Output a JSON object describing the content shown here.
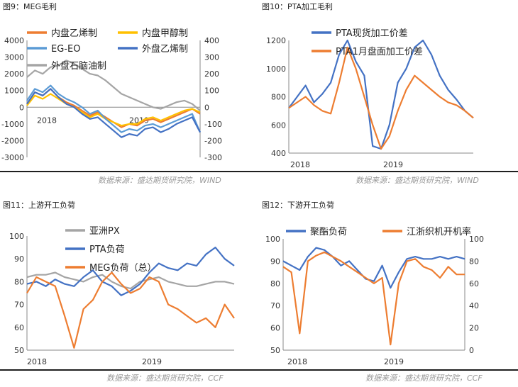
{
  "source_left": "数据来源：盛达期货研究院，WIND",
  "source_right_top": "数据来源：盛达期货研究院，WIND",
  "source_bottom": "数据来源：盛达期货研究院，CCF",
  "colors": {
    "orange": "#ED7D31",
    "yellow": "#FFC000",
    "lightblue": "#5B9BD5",
    "blue": "#4472C4",
    "gray": "#A5A5A5"
  },
  "chart_data": [
    {
      "title": "图9：MEG毛利",
      "type": "line",
      "x_ticks": [
        "2018",
        "2019"
      ],
      "y_left": {
        "ylim": [
          -3000,
          4000
        ],
        "ticks": [
          "4000",
          "3000",
          "2000",
          "1000",
          "0",
          "-1000",
          "-2000",
          "-3000"
        ]
      },
      "y_right": {
        "ylim": [
          -300,
          400
        ],
        "ticks": [
          "400",
          "300",
          "200",
          "100",
          "0",
          "-100",
          "-200",
          "-300"
        ]
      },
      "legend": "top-left",
      "series": [
        {
          "name": "内盘乙烯制",
          "color": "#ED7D31",
          "axis": "left",
          "values": [
            200,
            900,
            700,
            1100,
            600,
            300,
            100,
            -200,
            -500,
            -300,
            -600,
            -900,
            -1200,
            -1000,
            -1100,
            -800,
            -700,
            -900,
            -700,
            -500,
            -300,
            -100,
            -400
          ]
        },
        {
          "name": "内盘甲醇制",
          "color": "#FFC000",
          "axis": "left",
          "values": [
            100,
            700,
            500,
            800,
            500,
            200,
            0,
            -300,
            -600,
            -400,
            -700,
            -900,
            -1100,
            -1000,
            -1000,
            -700,
            -600,
            -800,
            -600,
            -400,
            -200,
            -100,
            -300
          ]
        },
        {
          "name": "EG-EO",
          "color": "#5B9BD5",
          "axis": "left",
          "values": [
            400,
            1100,
            900,
            1300,
            800,
            500,
            300,
            0,
            -400,
            -200,
            -700,
            -1100,
            -1500,
            -1300,
            -1400,
            -1100,
            -1000,
            -1200,
            -1000,
            -800,
            -600,
            -400,
            -1500
          ]
        },
        {
          "name": "外盘乙烯制",
          "color": "#4472C4",
          "axis": "right",
          "values": [
            20,
            90,
            70,
            110,
            60,
            20,
            0,
            -40,
            -70,
            -60,
            -100,
            -140,
            -180,
            -160,
            -170,
            -130,
            -120,
            -150,
            -130,
            -100,
            -80,
            -60,
            -150
          ]
        },
        {
          "name": "外盘石脑油制",
          "color": "#A5A5A5",
          "axis": "right",
          "values": [
            180,
            220,
            200,
            240,
            250,
            280,
            260,
            230,
            200,
            190,
            160,
            120,
            80,
            60,
            40,
            20,
            0,
            -10,
            10,
            30,
            40,
            20,
            -20
          ]
        }
      ]
    },
    {
      "title": "图10：PTA加工毛利",
      "type": "line",
      "x_ticks": [
        "2018",
        "2019"
      ],
      "y_left": {
        "ylim": [
          400,
          1200
        ],
        "ticks": [
          "1200",
          "1000",
          "800",
          "600",
          "400"
        ]
      },
      "legend": "top-left",
      "series": [
        {
          "name": "PTA现货加工价差",
          "color": "#4472C4",
          "values": [
            720,
            800,
            880,
            760,
            820,
            900,
            1100,
            1200,
            1050,
            950,
            450,
            430,
            600,
            900,
            1000,
            1150,
            1200,
            1100,
            950,
            850,
            780,
            700,
            650
          ]
        },
        {
          "name": "PTA1月盘面加工价差",
          "color": "#ED7D31",
          "values": [
            720,
            760,
            800,
            740,
            700,
            680,
            900,
            1150,
            1000,
            800,
            600,
            430,
            520,
            700,
            850,
            950,
            900,
            850,
            800,
            760,
            740,
            700,
            650
          ]
        }
      ]
    },
    {
      "title": "图11：上游开工负荷",
      "type": "line",
      "x_ticks": [
        "2018",
        "2019"
      ],
      "y_left": {
        "ylim": [
          50,
          100
        ],
        "ticks": [
          "100",
          "90",
          "80",
          "70",
          "60",
          "50"
        ]
      },
      "legend": "top-left",
      "series": [
        {
          "name": "亚洲PX",
          "color": "#A5A5A5",
          "values": [
            82,
            83,
            83,
            84,
            82,
            81,
            80,
            82,
            83,
            80,
            78,
            77,
            80,
            81,
            82,
            80,
            79,
            78,
            78,
            79,
            80,
            80,
            79
          ]
        },
        {
          "name": "PTA负荷",
          "color": "#4472C4",
          "values": [
            79,
            80,
            78,
            81,
            79,
            78,
            82,
            85,
            80,
            78,
            74,
            76,
            79,
            84,
            88,
            86,
            85,
            88,
            87,
            92,
            95,
            90,
            87
          ]
        },
        {
          "name": "MEG负荷（总）",
          "color": "#ED7D31",
          "values": [
            75,
            82,
            80,
            78,
            65,
            51,
            68,
            72,
            80,
            84,
            79,
            75,
            77,
            82,
            80,
            70,
            68,
            65,
            62,
            64,
            60,
            70,
            64
          ]
        }
      ]
    },
    {
      "title": "图12：下游开工负荷",
      "type": "line",
      "x_ticks": [
        "2018",
        "2019"
      ],
      "y_left": {
        "ylim": [
          50,
          100
        ],
        "ticks": [
          "100",
          "90",
          "80",
          "70",
          "60",
          "50"
        ]
      },
      "y_right": {
        "ylim": [
          0,
          100
        ],
        "ticks": [
          "100",
          "80",
          "60",
          "40",
          "20",
          "0"
        ]
      },
      "legend": "top-left",
      "series": [
        {
          "name": "聚酯负荷",
          "color": "#4472C4",
          "axis": "left",
          "values": [
            90,
            88,
            86,
            92,
            96,
            95,
            92,
            88,
            90,
            86,
            82,
            81,
            88,
            78,
            85,
            91,
            92,
            91,
            91,
            92,
            91,
            92,
            91
          ]
        },
        {
          "name": "江浙织机开机率",
          "color": "#ED7D31",
          "axis": "right",
          "values": [
            75,
            70,
            15,
            80,
            85,
            88,
            84,
            80,
            75,
            70,
            65,
            60,
            65,
            5,
            60,
            80,
            82,
            75,
            72,
            65,
            75,
            68,
            68
          ]
        }
      ]
    }
  ]
}
